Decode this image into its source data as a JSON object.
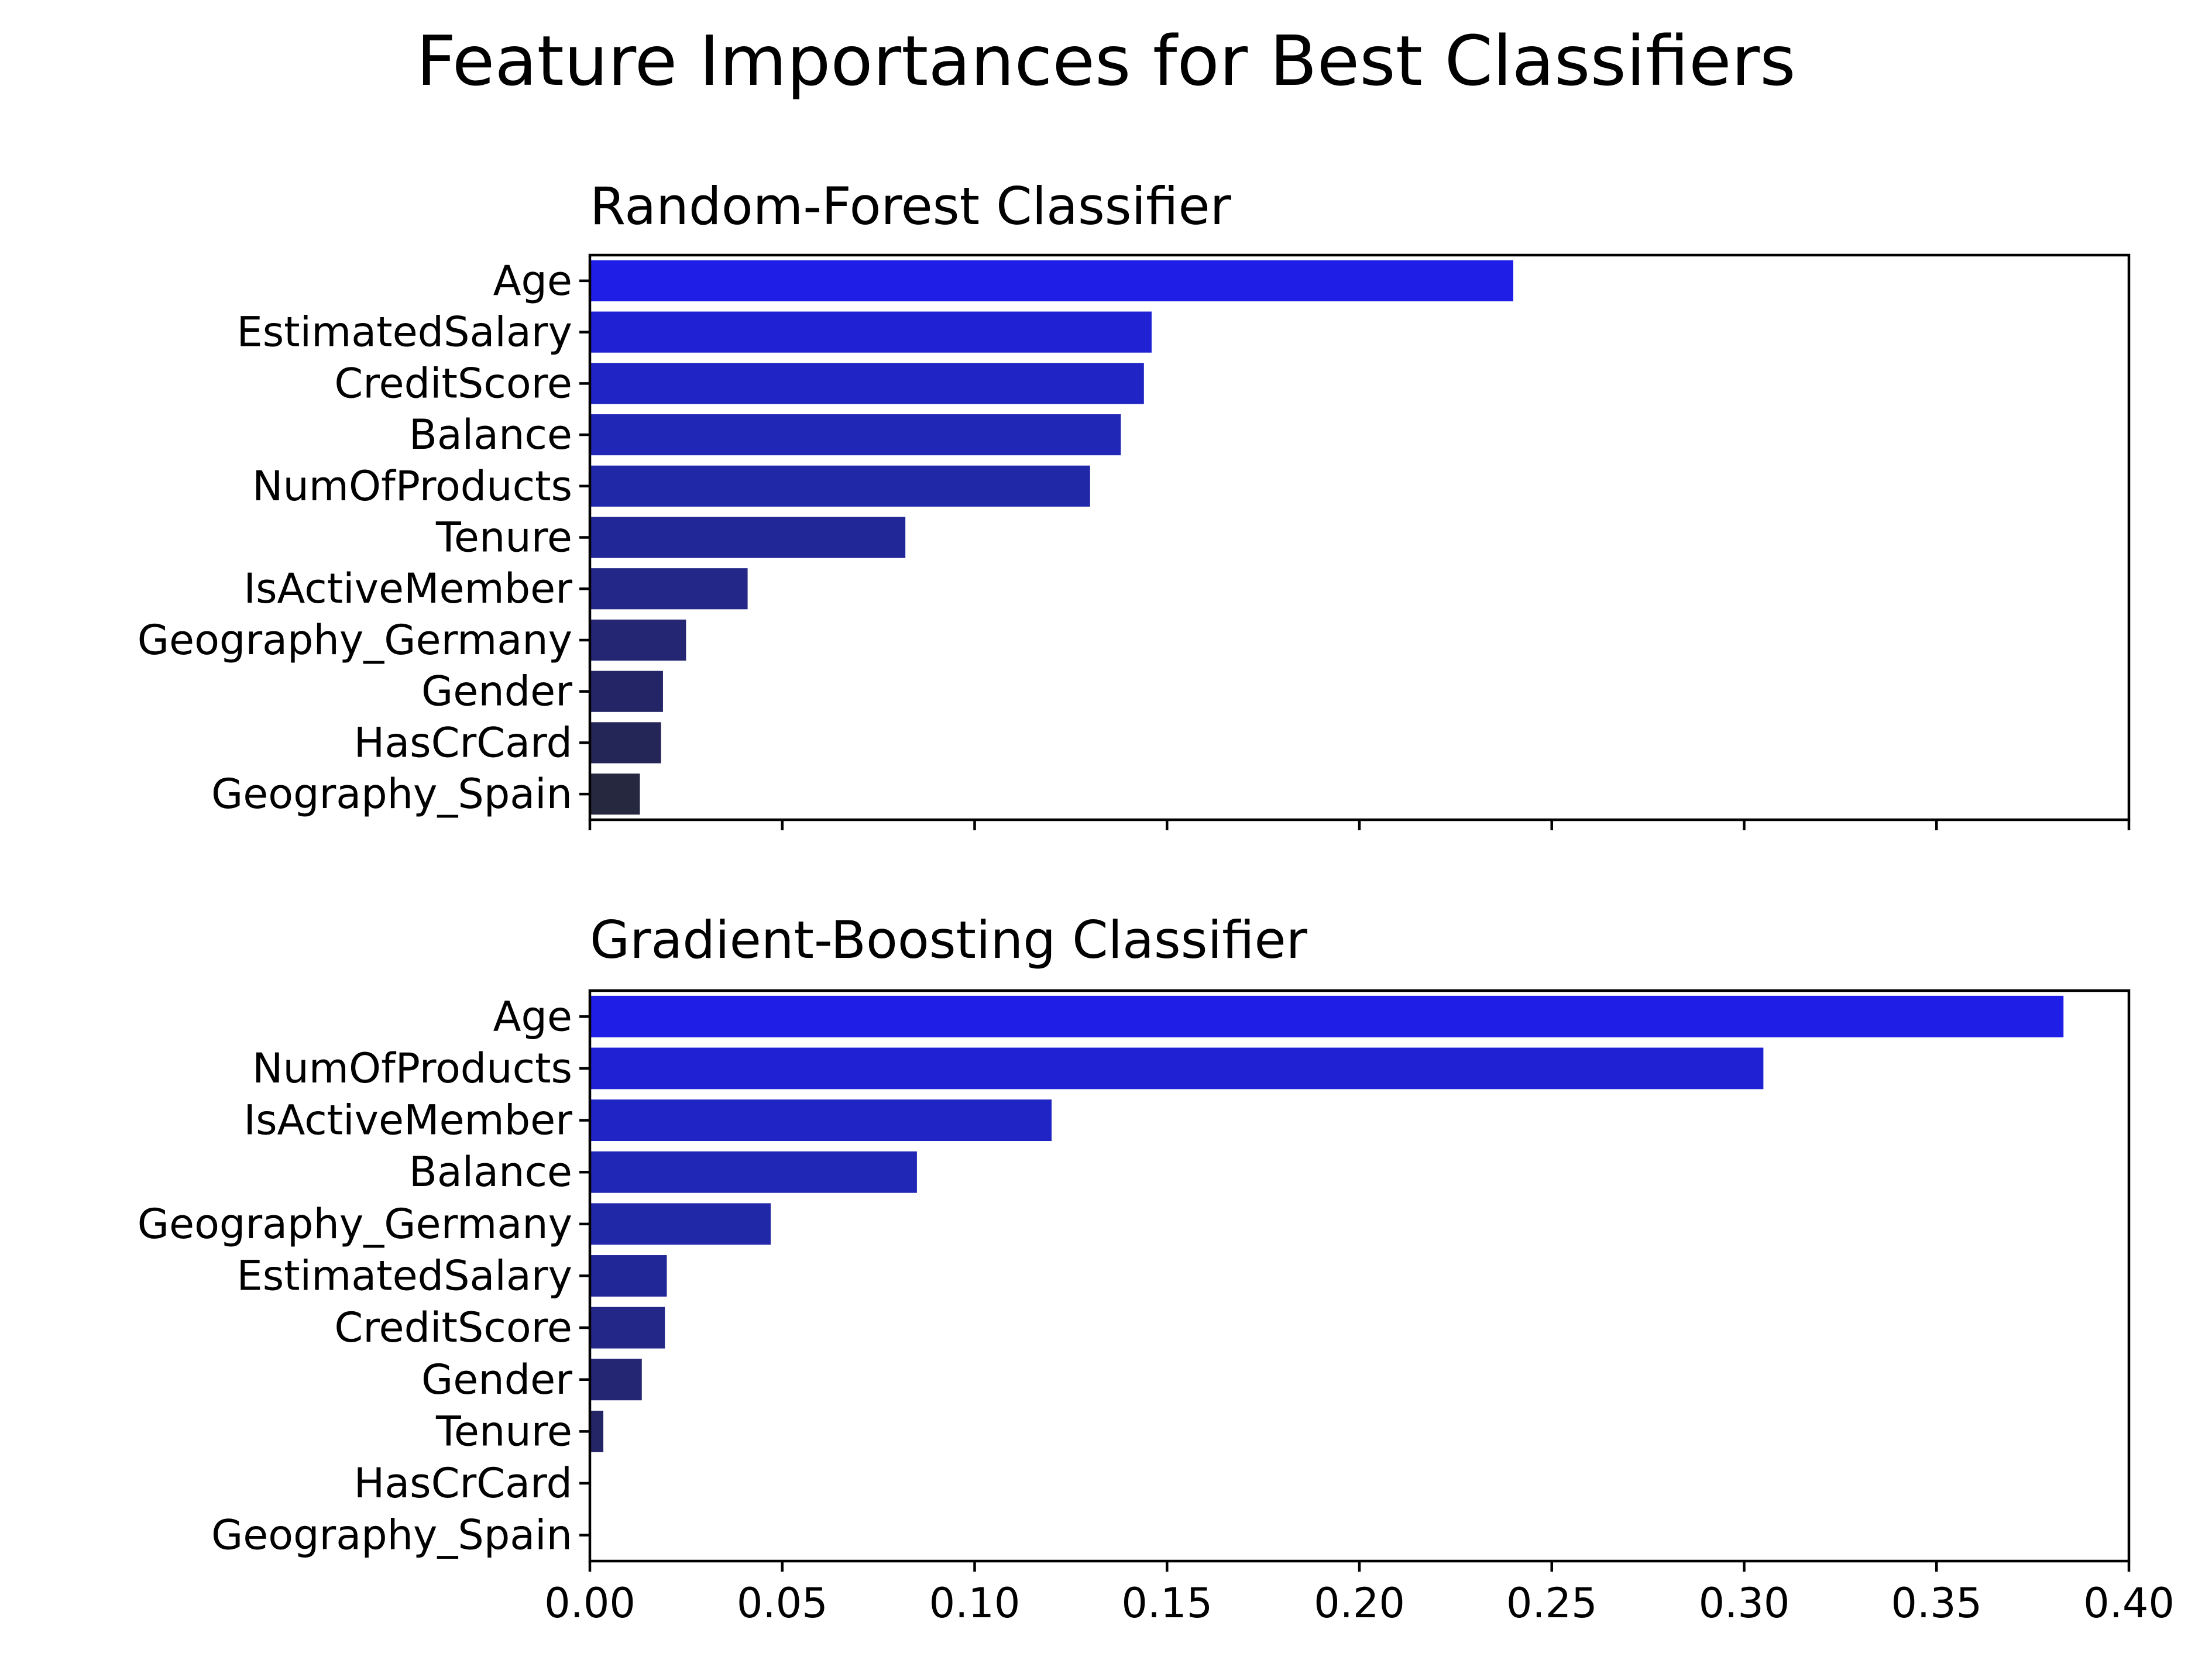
{
  "figure": {
    "suptitle": "Feature Importances for Best Classifiers"
  },
  "chart_data": [
    {
      "type": "bar",
      "orientation": "horizontal",
      "title": "Random-Forest Classifier",
      "xlabel": "",
      "ylabel": "",
      "xlim": [
        0,
        0.4
      ],
      "xticks": [
        "0.00",
        "0.05",
        "0.10",
        "0.15",
        "0.20",
        "0.25",
        "0.30",
        "0.35",
        "0.40"
      ],
      "show_xtick_labels": false,
      "categories": [
        "Age",
        "EstimatedSalary",
        "CreditScore",
        "Balance",
        "NumOfProducts",
        "Tenure",
        "IsActiveMember",
        "Geography_Germany",
        "Gender",
        "HasCrCard",
        "Geography_Spain"
      ],
      "values": [
        0.24,
        0.146,
        0.144,
        0.138,
        0.13,
        0.082,
        0.041,
        0.025,
        0.019,
        0.0185,
        0.013
      ],
      "colors": [
        "#1e1ee6",
        "#1f21d3",
        "#2024c5",
        "#2026b6",
        "#2028a8",
        "#212796",
        "#232888",
        "#242674",
        "#242566",
        "#252658",
        "#262840"
      ],
      "grid": false
    },
    {
      "type": "bar",
      "orientation": "horizontal",
      "title": "Gradient-Boosting Classifier",
      "xlabel": "",
      "ylabel": "",
      "xlim": [
        0,
        0.4
      ],
      "xticks": [
        "0.00",
        "0.05",
        "0.10",
        "0.15",
        "0.20",
        "0.25",
        "0.30",
        "0.35",
        "0.40"
      ],
      "show_xtick_labels": true,
      "categories": [
        "Age",
        "NumOfProducts",
        "IsActiveMember",
        "Balance",
        "Geography_Germany",
        "EstimatedSalary",
        "CreditScore",
        "Gender",
        "Tenure",
        "HasCrCard",
        "Geography_Spain"
      ],
      "values": [
        0.383,
        0.305,
        0.12,
        0.085,
        0.047,
        0.02,
        0.0195,
        0.0135,
        0.0035,
        0.0,
        0.0
      ],
      "colors": [
        "#1e1ee6",
        "#1f21d3",
        "#2024c5",
        "#2026b6",
        "#2028a8",
        "#212796",
        "#232888",
        "#242674",
        "#242566",
        "#252658",
        "#262840"
      ],
      "grid": false
    }
  ]
}
